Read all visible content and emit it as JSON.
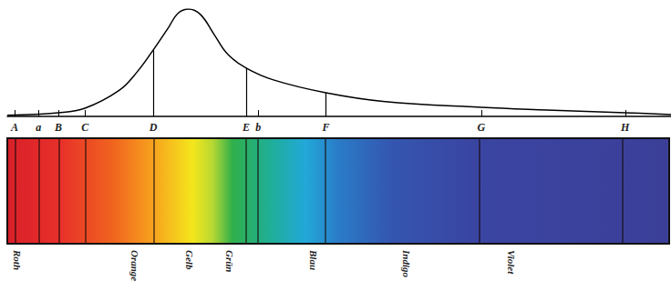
{
  "chart_data": {
    "type": "line",
    "color": "#000000",
    "grid": false,
    "tick_labels": "x",
    "xlim": [
      0,
      100
    ],
    "ylim": [
      0,
      100
    ],
    "x": [
      0,
      7.7,
      11.7,
      16.8,
      19.5,
      22.0,
      24.3,
      25.7,
      27.3,
      29.1,
      31.2,
      33.2,
      36.0,
      40.1,
      48.0,
      56.6,
      71.4,
      81.3,
      93.1,
      100
    ],
    "values": [
      1,
      3.4,
      7.6,
      24,
      41,
      62,
      83,
      96,
      100,
      95,
      76,
      58,
      45,
      34,
      22,
      14,
      8.5,
      6,
      3.4,
      1.7
    ],
    "xticks": [
      {
        "value": 1.1,
        "label": "A"
      },
      {
        "value": 4.7,
        "label": "a"
      },
      {
        "value": 7.7,
        "label": "B"
      },
      {
        "value": 11.7,
        "label": "C"
      },
      {
        "value": 22.0,
        "label": "D"
      },
      {
        "value": 36.0,
        "label": "E"
      },
      {
        "value": 37.8,
        "label": "b"
      },
      {
        "value": 48.0,
        "label": "F"
      },
      {
        "value": 71.4,
        "label": "G"
      },
      {
        "value": 93.1,
        "label": "H"
      }
    ],
    "drop_lines": [
      {
        "x": 22.0,
        "y": 62
      },
      {
        "x": 36.0,
        "y": 45
      },
      {
        "x": 48.0,
        "y": 22
      }
    ],
    "color_names": [
      {
        "value": 1.4,
        "label": "Roth"
      },
      {
        "value": 19.2,
        "label": "Orange"
      },
      {
        "value": 27.5,
        "label": "Gelb"
      },
      {
        "value": 33.5,
        "label": "Grün"
      },
      {
        "value": 46.3,
        "label": "Blau"
      },
      {
        "value": 60.3,
        "label": "Indigo"
      },
      {
        "value": 76.2,
        "label": "Violet"
      }
    ]
  }
}
